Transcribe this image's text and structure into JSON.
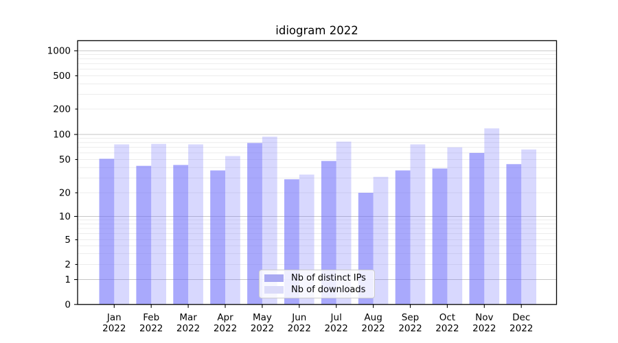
{
  "chart_data": {
    "type": "bar",
    "title": "idiogram 2022",
    "categories": [
      "Jan",
      "Feb",
      "Mar",
      "Apr",
      "May",
      "Jun",
      "Jul",
      "Aug",
      "Sep",
      "Oct",
      "Nov",
      "Dec"
    ],
    "year_label": "2022",
    "series": [
      {
        "name": "Nb of distinct IPs",
        "base_color": "#7070fa",
        "opacity": 0.6,
        "swatch_color": "#a9a9f2",
        "values": [
          51,
          42,
          43,
          37,
          79,
          29,
          48,
          20,
          37,
          39,
          60,
          44
        ]
      },
      {
        "name": "Nb of downloads",
        "base_color": "#7070fa",
        "opacity": 0.27,
        "swatch_color": "#dbdbf9",
        "values": [
          76,
          77,
          76,
          55,
          94,
          33,
          82,
          31,
          76,
          70,
          118,
          66
        ]
      }
    ],
    "y_axis": {
      "scale": "symlog",
      "tick_labels": [
        "0",
        "1",
        "2",
        "5",
        "10",
        "20",
        "50",
        "100",
        "200",
        "500",
        "1000"
      ],
      "range": [
        0,
        1200
      ]
    },
    "x_axis": {
      "tick_label_lines": 2
    },
    "legend": {
      "position": "lower center"
    },
    "grid": {
      "major_color": "#c6c6c6",
      "minor_color": "#ececec"
    }
  }
}
